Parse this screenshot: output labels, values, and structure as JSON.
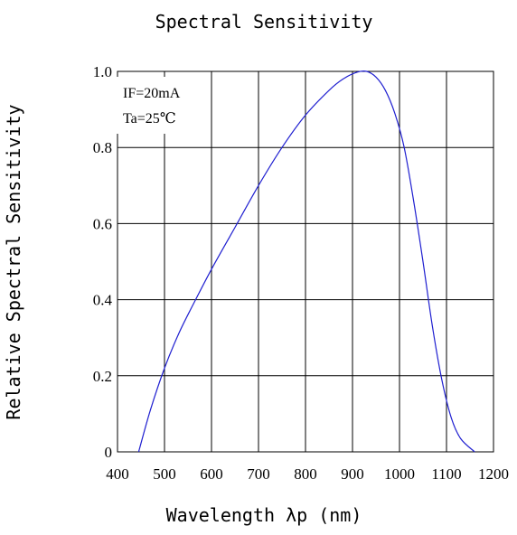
{
  "chart_data": {
    "type": "line",
    "title": "Spectral Sensitivity",
    "xlabel": "Wavelength λp (nm)",
    "ylabel": "Relative Spectral Sensitivity",
    "xlim": [
      400,
      1200
    ],
    "ylim": [
      0,
      1.0
    ],
    "x_ticks": [
      400,
      500,
      600,
      700,
      800,
      900,
      1000,
      1100,
      1200
    ],
    "x_tick_labels": [
      "400",
      "500",
      "600",
      "700",
      "800",
      "900",
      "1000",
      "1100",
      "1200"
    ],
    "y_ticks": [
      0,
      0.2,
      0.4,
      0.6,
      0.8,
      1.0
    ],
    "y_tick_labels": [
      "0",
      "0.2",
      "0.4",
      "0.6",
      "0.8",
      "1.0"
    ],
    "grid": true,
    "conditions": [
      "IF=20mA",
      "Ta=25℃"
    ],
    "line_color": "#1f1fd0",
    "series": [
      {
        "x": [
          445,
          470,
          500,
          530,
          560,
          600,
          650,
          700,
          750,
          800,
          850,
          880,
          910,
          930,
          950,
          970,
          990,
          1010,
          1030,
          1050,
          1070,
          1090,
          1110,
          1130,
          1160
        ],
        "values": [
          0.0,
          0.11,
          0.22,
          0.31,
          0.385,
          0.48,
          0.59,
          0.7,
          0.8,
          0.885,
          0.95,
          0.98,
          0.998,
          1.0,
          0.985,
          0.95,
          0.89,
          0.8,
          0.66,
          0.5,
          0.33,
          0.19,
          0.09,
          0.035,
          0.0
        ]
      }
    ]
  }
}
